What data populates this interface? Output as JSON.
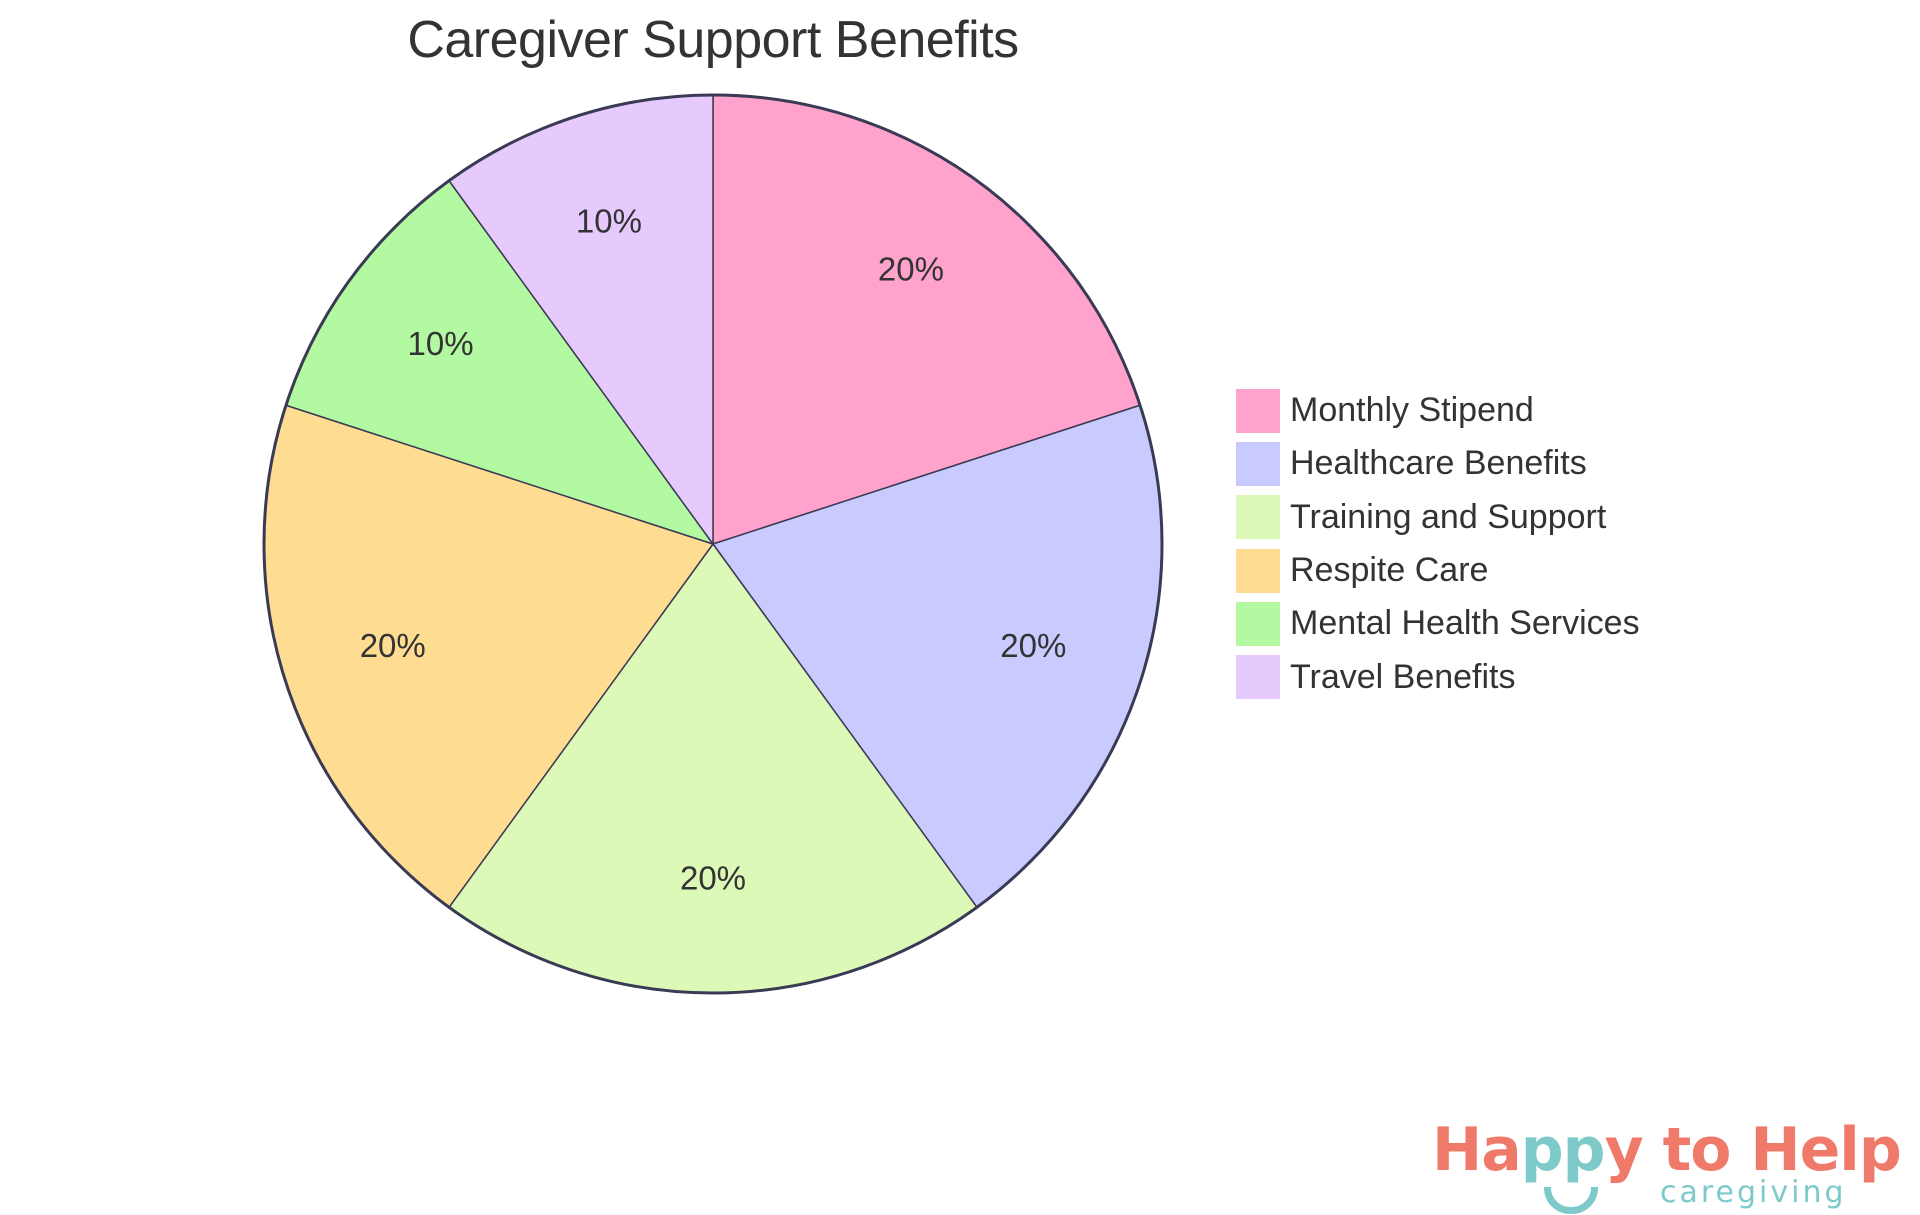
{
  "chart_data": {
    "type": "pie",
    "title": "Caregiver Support Benefits",
    "categories": [
      "Monthly Stipend",
      "Healthcare Benefits",
      "Training and Support",
      "Respite Care",
      "Mental Health Services",
      "Travel Benefits"
    ],
    "values": [
      20,
      20,
      20,
      20,
      10,
      10
    ],
    "labels": [
      "20%",
      "20%",
      "20%",
      "20%",
      "10%",
      "10%"
    ],
    "colors": [
      "#ffa3cd",
      "#c9cbff",
      "#dcf9b8",
      "#fedc92",
      "#b2f9a1",
      "#e6cafe"
    ],
    "legend_position": "right",
    "start_angle_deg": 0,
    "direction": "clockwise"
  },
  "title": "Caregiver Support Benefits",
  "legend": {
    "items": [
      {
        "label": "Monthly Stipend",
        "color": "#ffa3cd"
      },
      {
        "label": "Healthcare Benefits",
        "color": "#c9cbff"
      },
      {
        "label": "Training and Support",
        "color": "#dcf9b8"
      },
      {
        "label": "Respite Care",
        "color": "#fedc92"
      },
      {
        "label": "Mental Health Services",
        "color": "#b2f9a1"
      },
      {
        "label": "Travel Benefits",
        "color": "#e6cafe"
      }
    ]
  },
  "slice_labels": [
    "20%",
    "20%",
    "20%",
    "20%",
    "10%",
    "10%"
  ],
  "logo": {
    "word1_a": "Ha",
    "word1_b": "pp",
    "word1_c": "y to Help",
    "sub": "caregiving",
    "primary_color": "#f07a6a",
    "secondary_color": "#7ecacb"
  }
}
